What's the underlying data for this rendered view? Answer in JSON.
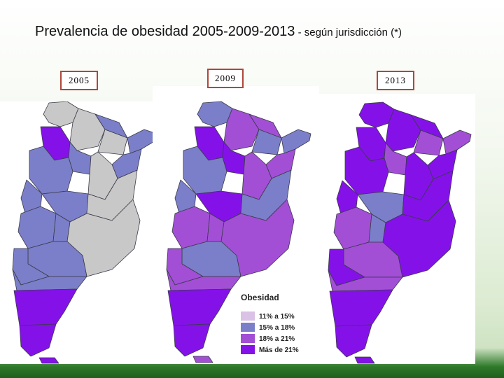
{
  "title": {
    "main": "Prevalencia de obesidad 2005-2009-2013",
    "sub": " - según jurisdicción (*)"
  },
  "years": [
    "2005",
    "2009",
    "2013"
  ],
  "legend": {
    "title": "Obesidad",
    "items": [
      {
        "label": "11% a 15%",
        "color": "#d9c2e6"
      },
      {
        "label": "15% a 18%",
        "color": "#7b7fc9"
      },
      {
        "label": "18% a 21%",
        "color": "#a24fd6"
      },
      {
        "label": "Más de 21%",
        "color": "#8412e8"
      }
    ]
  },
  "colors": {
    "no_data": "#c8c8c8",
    "c15_18": "#7b7fc9",
    "c18_21": "#a24fd6",
    "c21_plus": "#8412e8",
    "outline": "#3a3a4a",
    "frame": "#b0473a"
  }
}
